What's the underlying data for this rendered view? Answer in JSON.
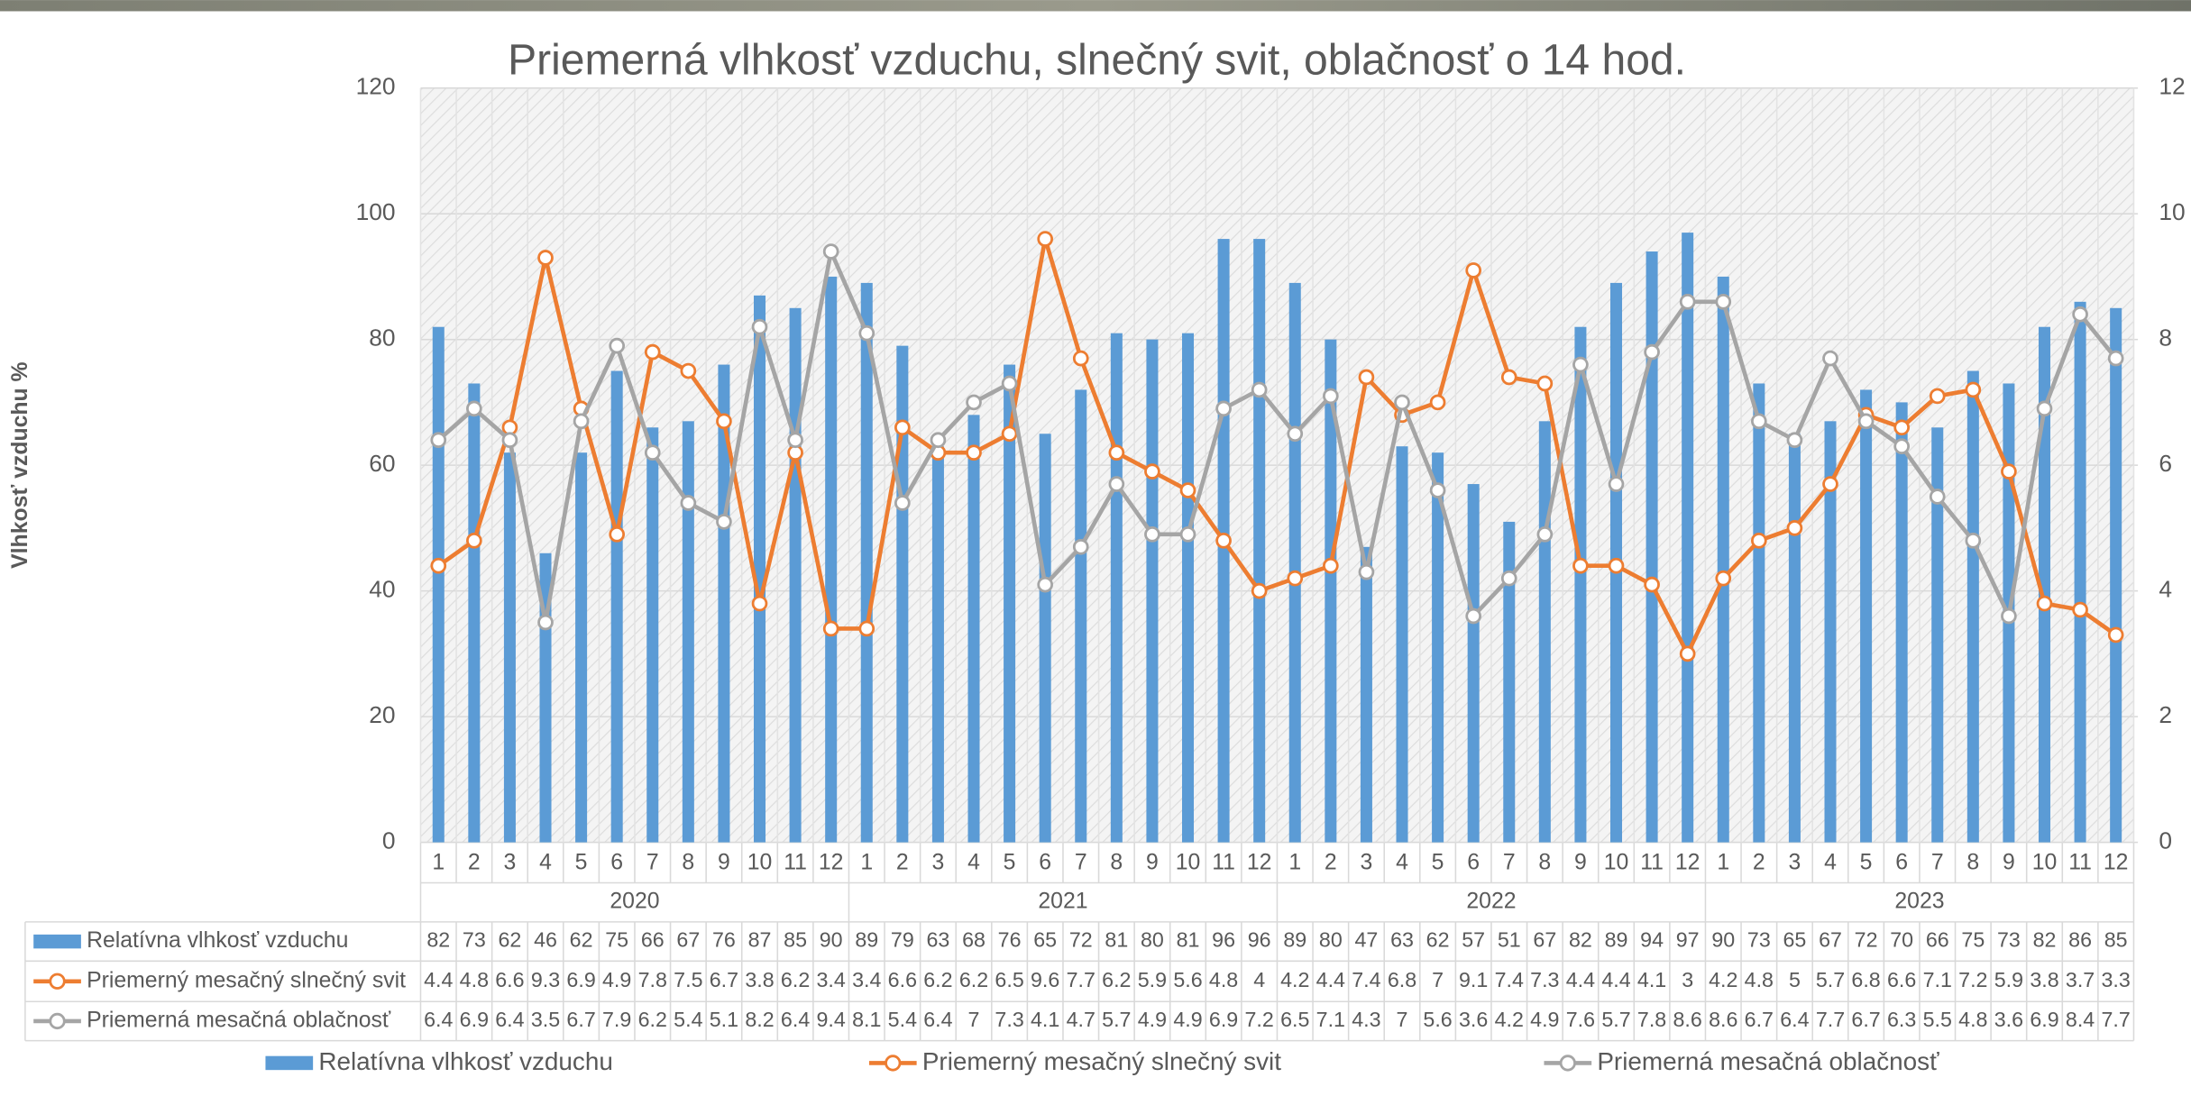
{
  "chart_data": {
    "type": "bar_line",
    "title": "Priemerná vlhkosť vzduchu, slnečný svit, oblačnosť o 14 hod.",
    "y_label": "Vlhkosť vzduchu %",
    "categories": [
      "1",
      "2",
      "3",
      "4",
      "5",
      "6",
      "7",
      "8",
      "9",
      "10",
      "11",
      "12",
      "1",
      "2",
      "3",
      "4",
      "5",
      "6",
      "7",
      "8",
      "9",
      "10",
      "11",
      "12",
      "1",
      "2",
      "3",
      "4",
      "5",
      "6",
      "7",
      "8",
      "9",
      "10",
      "11",
      "12",
      "1",
      "2",
      "3",
      "4",
      "5",
      "6",
      "7",
      "8",
      "9",
      "10",
      "11",
      "12"
    ],
    "category_groups": [
      "2020",
      "2021",
      "2022",
      "2023"
    ],
    "series": [
      {
        "name": "Relatívna vlhkosť vzduchu",
        "type": "bar",
        "color": "#5b9bd5",
        "values": [
          82,
          73,
          62,
          46,
          62,
          75,
          66,
          67,
          76,
          87,
          85,
          90,
          89,
          79,
          63,
          68,
          76,
          65,
          72,
          81,
          80,
          81,
          96,
          96,
          89,
          80,
          47,
          63,
          62,
          57,
          51,
          67,
          82,
          89,
          94,
          97,
          90,
          73,
          65,
          67,
          72,
          70,
          66,
          75,
          73,
          82,
          86,
          85
        ]
      },
      {
        "name": "Priemerný mesačný slnečný svit",
        "type": "line",
        "axis": "y2",
        "color": "#ed7d31",
        "values": [
          4.4,
          4.8,
          6.6,
          9.3,
          6.9,
          4.9,
          7.8,
          7.5,
          6.7,
          3.8,
          6.2,
          3.4,
          3.4,
          6.6,
          6.2,
          6.2,
          6.5,
          9.6,
          7.7,
          6.2,
          5.9,
          5.6,
          4.8,
          4,
          4.2,
          4.4,
          7.4,
          6.8,
          7,
          9.1,
          7.4,
          7.3,
          4.4,
          4.4,
          4.1,
          3,
          4.2,
          4.8,
          5,
          5.7,
          6.8,
          6.6,
          7.1,
          7.2,
          5.9,
          3.8,
          3.7,
          3.3
        ]
      },
      {
        "name": "Priemerná mesačná oblačnosť",
        "type": "line",
        "axis": "y2",
        "color": "#a5a5a5",
        "values": [
          6.4,
          6.9,
          6.4,
          3.5,
          6.7,
          7.9,
          6.2,
          5.4,
          5.1,
          8.2,
          6.4,
          9.4,
          8.1,
          5.4,
          6.4,
          7,
          7.3,
          4.1,
          4.7,
          5.7,
          4.9,
          4.9,
          6.9,
          7.2,
          6.5,
          7.1,
          4.3,
          7,
          5.6,
          3.6,
          4.2,
          4.9,
          7.6,
          5.7,
          7.8,
          8.6,
          8.6,
          6.7,
          6.4,
          7.7,
          6.7,
          6.3,
          5.5,
          4.8,
          3.6,
          6.9,
          8.4,
          7.7
        ]
      }
    ],
    "ylim": [
      0,
      120
    ],
    "yticks": [
      0,
      20,
      40,
      60,
      80,
      100,
      120
    ],
    "y2lim": [
      0,
      12
    ],
    "y2ticks": [
      0,
      2,
      4,
      6,
      8,
      10,
      12
    ],
    "grid": true,
    "legend": "bottom",
    "data_table": true
  }
}
